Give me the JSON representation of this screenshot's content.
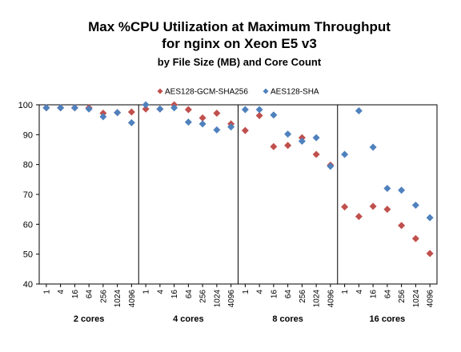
{
  "chart_data": {
    "type": "scatter",
    "title": [
      "Max %CPU Utilization at Maximum Throughput",
      "for nginx on Xeon E5 v3"
    ],
    "subtitle": "by File Size (MB) and Core Count",
    "xlabel": "",
    "ylabel": "",
    "ylim": [
      40,
      100
    ],
    "yticks": [
      40,
      50,
      60,
      70,
      80,
      90,
      100
    ],
    "grid": false,
    "legend_placement": "top-center",
    "groups": [
      {
        "name": "2 cores",
        "categories": [
          "1",
          "4",
          "16",
          "64",
          "256",
          "1024",
          "4096"
        ]
      },
      {
        "name": "4 cores",
        "categories": [
          "1",
          "4",
          "16",
          "64",
          "256",
          "1024",
          "4096"
        ]
      },
      {
        "name": "8 cores",
        "categories": [
          "1",
          "4",
          "16",
          "64",
          "256",
          "1024",
          "4096"
        ]
      },
      {
        "name": "16 cores",
        "categories": [
          "1",
          "4",
          "16",
          "64",
          "256",
          "1024",
          "4096"
        ]
      }
    ],
    "series": [
      {
        "name": "AES128-GCM-SHA256",
        "color": "#C0504D",
        "values": [
          [
            99.0,
            99.0,
            99.0,
            99.0,
            97.2,
            97.4,
            97.6
          ],
          [
            98.6,
            98.6,
            100.0,
            98.4,
            95.6,
            97.2,
            93.6
          ],
          [
            91.4,
            96.4,
            86.0,
            86.4,
            89.0,
            83.4,
            79.8
          ],
          [
            65.8,
            62.6,
            66.0,
            65.0,
            59.6,
            55.2,
            50.2
          ]
        ]
      },
      {
        "name": "AES128-SHA",
        "color": "#4F81BD",
        "values": [
          [
            99.0,
            99.0,
            99.0,
            98.6,
            96.0,
            97.4,
            94.0
          ],
          [
            100.0,
            98.6,
            99.0,
            94.2,
            93.6,
            91.6,
            92.6
          ],
          [
            98.4,
            98.4,
            96.6,
            90.2,
            87.8,
            89.0,
            79.4
          ],
          [
            83.4,
            98.0,
            85.8,
            72.0,
            71.4,
            66.4,
            62.2
          ]
        ]
      }
    ]
  },
  "colors": {
    "series_1": "#C0504D",
    "series_2": "#4F81BD"
  }
}
